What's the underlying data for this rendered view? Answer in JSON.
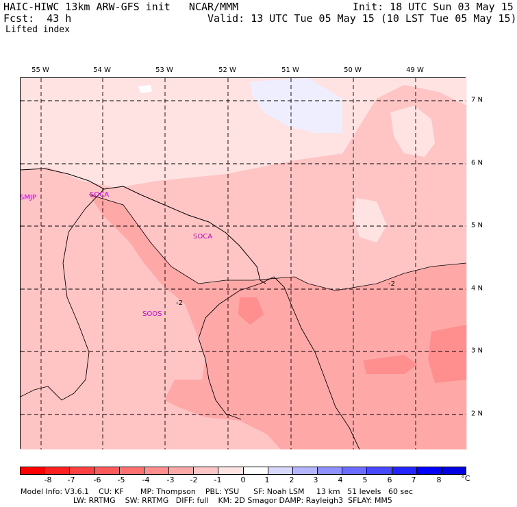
{
  "header": {
    "left_line1": "HAIC-HIWC 13km ARW-GFS init   NCAR/MMM",
    "left_line2": "Fcst:  43 h",
    "right_line1": "Init: 18 UTC Sun 03 May 15",
    "right_line2": "Valid: 13 UTC Tue 05 May 15 (10 LST Tue 05 May 15)",
    "field": "Lifted index"
  },
  "map": {
    "lon_labels": [
      "55 W",
      "54 W",
      "53 W",
      "52 W",
      "51 W",
      "50 W",
      "49 W"
    ],
    "lat_labels": [
      "7 N",
      "6 N",
      "5 N",
      "4 N",
      "3 N",
      "2 N"
    ],
    "stations": [
      "SMJP",
      "SOCA",
      "SOCA",
      "SOOS"
    ],
    "contour_labels": [
      "-2",
      "-2"
    ]
  },
  "colorbar": {
    "ticks": [
      "-8",
      "-7",
      "-6",
      "-5",
      "-4",
      "-3",
      "-2",
      "-1",
      "0",
      "1",
      "2",
      "3",
      "4",
      "5",
      "6",
      "7",
      "8"
    ],
    "unit": "°C",
    "colors": [
      "#ff0000",
      "#ff2020",
      "#ff4040",
      "#ff5a5a",
      "#ff7070",
      "#ff8e8e",
      "#ffa8a8",
      "#ffc4c4",
      "#ffe2e2",
      "#ffffff",
      "#d8d8ff",
      "#b4b4ff",
      "#9090ff",
      "#6c6cff",
      "#4848ff",
      "#2424ff",
      "#0000ff",
      "#0000e0"
    ]
  },
  "footer": {
    "line1": "Model Info: V3.6.1    CU: KF       MP: Thompson    PBL: YSU      SF: Noah LSM     13 km   51 levels   60 sec",
    "line2": "                      LW: RRTMG    SW: RRTMG   DIFF: full    KM: 2D Smagor DAMP: Rayleigh3  SFLAY: MM5"
  }
}
